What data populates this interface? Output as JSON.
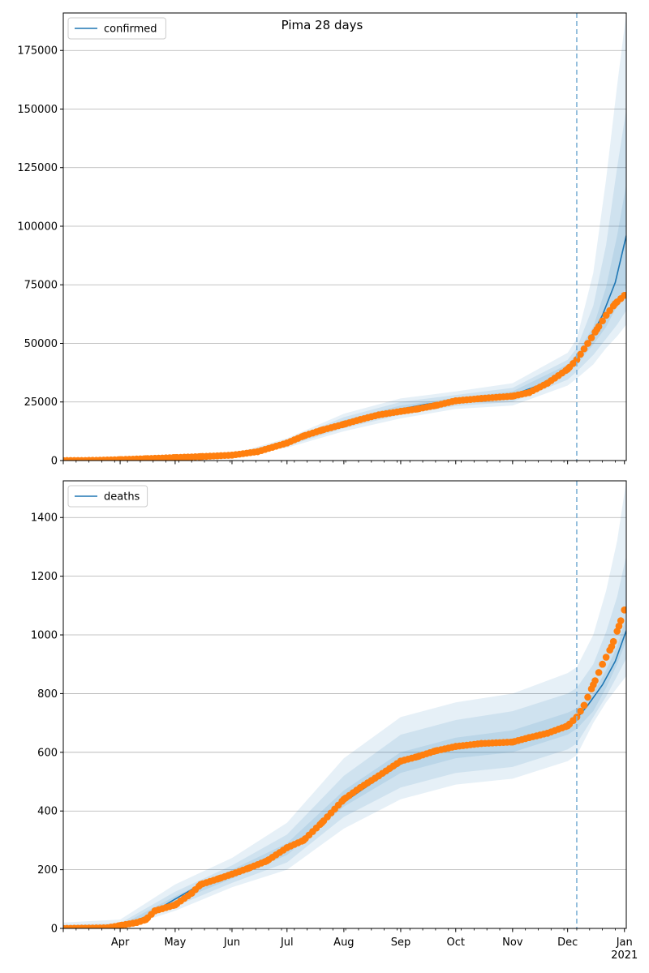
{
  "figure": {
    "suptitle": "Pima 28 days"
  },
  "colors": {
    "model_line": "#1f77b4",
    "observed_points": "#ff7f0e",
    "band": "#1f77b4",
    "forecast_line": "#7fb1d6",
    "grid": "#b0b0b0"
  },
  "chart_data": [
    {
      "type": "line",
      "xlabel": "",
      "ylabel": "",
      "x_range": [
        "2020-03-01",
        "2021-01-02"
      ],
      "ylim": [
        0,
        191000
      ],
      "yticks": [
        0,
        25000,
        50000,
        75000,
        100000,
        125000,
        150000,
        175000
      ],
      "x_tick_labels": [],
      "grid": "horizontal",
      "legend": {
        "placement": "top-left",
        "entries": [
          "confirmed"
        ]
      },
      "forecast_start": "2020-12-06",
      "series": [
        {
          "name": "confirmed",
          "kind": "model-median",
          "x": [
            "2020-03-01",
            "2020-04-01",
            "2020-05-01",
            "2020-06-01",
            "2020-06-15",
            "2020-07-01",
            "2020-07-15",
            "2020-08-01",
            "2020-08-15",
            "2020-09-01",
            "2020-09-15",
            "2020-10-01",
            "2020-10-15",
            "2020-11-01",
            "2020-11-15",
            "2020-12-01",
            "2020-12-06",
            "2020-12-12",
            "2020-12-20",
            "2020-12-27",
            "2021-01-02"
          ],
          "y": [
            0,
            200,
            900,
            2200,
            3800,
            7500,
            12000,
            16000,
            19500,
            22000,
            24000,
            25500,
            26500,
            28000,
            32000,
            39000,
            43000,
            50000,
            62000,
            76000,
            96000
          ]
        },
        {
          "name": "observed",
          "kind": "observed",
          "x": [
            "2020-03-01",
            "2020-03-15",
            "2020-04-01",
            "2020-04-15",
            "2020-05-01",
            "2020-05-15",
            "2020-06-01",
            "2020-06-15",
            "2020-07-01",
            "2020-07-10",
            "2020-07-20",
            "2020-08-01",
            "2020-08-10",
            "2020-08-20",
            "2020-09-01",
            "2020-09-10",
            "2020-09-20",
            "2020-10-01",
            "2020-10-15",
            "2020-11-01",
            "2020-11-10",
            "2020-11-20",
            "2020-12-01",
            "2020-12-06",
            "2020-12-12",
            "2020-12-17",
            "2020-12-22",
            "2020-12-27",
            "2021-01-01"
          ],
          "y": [
            0,
            50,
            400,
            800,
            1300,
            1700,
            2300,
            3800,
            7500,
            10500,
            13000,
            15500,
            17500,
            19500,
            21000,
            22000,
            23500,
            25500,
            26500,
            27500,
            29000,
            33000,
            39000,
            43000,
            50000,
            56000,
            62000,
            67000,
            70500
          ]
        }
      ],
      "bands": [
        {
          "label": "outer",
          "x": [
            "2020-03-01",
            "2020-05-01",
            "2020-06-01",
            "2020-07-01",
            "2020-08-01",
            "2020-09-01",
            "2020-10-01",
            "2020-11-01",
            "2020-12-01",
            "2020-12-06",
            "2020-12-15",
            "2020-12-22",
            "2020-12-28",
            "2021-01-02"
          ],
          "lo": [
            0,
            700,
            1800,
            5500,
            12500,
            18000,
            22000,
            23500,
            32000,
            35000,
            41000,
            48000,
            53000,
            58000
          ],
          "hi": [
            200,
            1200,
            2800,
            9500,
            20000,
            26500,
            29500,
            33000,
            46000,
            52000,
            80000,
            120000,
            160000,
            191000
          ]
        },
        {
          "label": "middle",
          "x": [
            "2020-03-01",
            "2020-05-01",
            "2020-06-01",
            "2020-07-01",
            "2020-08-01",
            "2020-09-01",
            "2020-10-01",
            "2020-11-01",
            "2020-12-01",
            "2020-12-06",
            "2020-12-15",
            "2020-12-22",
            "2020-12-28",
            "2021-01-02"
          ],
          "lo": [
            0,
            780,
            1950,
            6200,
            13800,
            19500,
            23300,
            25000,
            34500,
            38000,
            45000,
            52000,
            58000,
            64000
          ],
          "hi": [
            150,
            1050,
            2550,
            8700,
            18500,
            25000,
            28000,
            31000,
            43000,
            48000,
            66000,
            92000,
            125000,
            150000
          ]
        },
        {
          "label": "inner",
          "x": [
            "2020-03-01",
            "2020-05-01",
            "2020-06-01",
            "2020-07-01",
            "2020-08-01",
            "2020-09-01",
            "2020-10-01",
            "2020-11-01",
            "2020-12-01",
            "2020-12-06",
            "2020-12-15",
            "2020-12-22",
            "2020-12-28",
            "2021-01-02"
          ],
          "lo": [
            0,
            850,
            2100,
            6900,
            15000,
            21000,
            24600,
            26500,
            37000,
            41000,
            49500,
            57000,
            66000,
            74000
          ],
          "hi": [
            100,
            950,
            2350,
            8100,
            17200,
            23500,
            26800,
            29500,
            41000,
            45500,
            57000,
            74000,
            96000,
            118000
          ]
        }
      ]
    },
    {
      "type": "line",
      "xlabel": "",
      "ylabel": "",
      "x_range": [
        "2020-03-01",
        "2021-01-02"
      ],
      "ylim": [
        0,
        1525
      ],
      "yticks": [
        0,
        200,
        400,
        600,
        800,
        1000,
        1200,
        1400
      ],
      "x_tick_labels": [
        "Apr",
        "May",
        "Jun",
        "Jul",
        "Aug",
        "Sep",
        "Oct",
        "Nov",
        "Dec",
        "Jan\n2021"
      ],
      "x_tick_dates": [
        "2020-04-01",
        "2020-05-01",
        "2020-06-01",
        "2020-07-01",
        "2020-08-01",
        "2020-09-01",
        "2020-10-01",
        "2020-11-01",
        "2020-12-01",
        "2021-01-01"
      ],
      "grid": "horizontal",
      "legend": {
        "placement": "top-left",
        "entries": [
          "deaths"
        ]
      },
      "forecast_start": "2020-12-06",
      "series": [
        {
          "name": "deaths",
          "kind": "model-median",
          "x": [
            "2020-03-01",
            "2020-03-20",
            "2020-04-01",
            "2020-04-15",
            "2020-05-01",
            "2020-05-15",
            "2020-06-01",
            "2020-06-15",
            "2020-07-01",
            "2020-07-15",
            "2020-08-01",
            "2020-08-15",
            "2020-09-01",
            "2020-09-15",
            "2020-10-01",
            "2020-10-15",
            "2020-11-01",
            "2020-11-15",
            "2020-12-01",
            "2020-12-06",
            "2020-12-12",
            "2020-12-20",
            "2020-12-27",
            "2021-01-02"
          ],
          "y": [
            0,
            0,
            5,
            40,
            100,
            150,
            185,
            225,
            270,
            330,
            430,
            490,
            560,
            595,
            615,
            625,
            635,
            650,
            685,
            715,
            760,
            830,
            910,
            1015
          ]
        },
        {
          "name": "observed",
          "kind": "observed",
          "x": [
            "2020-03-01",
            "2020-03-25",
            "2020-04-01",
            "2020-04-10",
            "2020-04-15",
            "2020-04-20",
            "2020-05-01",
            "2020-05-10",
            "2020-05-15",
            "2020-05-25",
            "2020-06-01",
            "2020-06-10",
            "2020-06-20",
            "2020-07-01",
            "2020-07-10",
            "2020-07-20",
            "2020-08-01",
            "2020-08-10",
            "2020-08-20",
            "2020-09-01",
            "2020-09-10",
            "2020-09-20",
            "2020-10-01",
            "2020-10-15",
            "2020-11-01",
            "2020-11-10",
            "2020-11-20",
            "2020-12-01",
            "2020-12-06",
            "2020-12-10",
            "2020-12-15",
            "2020-12-20",
            "2020-12-25",
            "2020-12-29",
            "2021-01-01"
          ],
          "y": [
            0,
            2,
            10,
            20,
            30,
            60,
            80,
            120,
            150,
            170,
            185,
            205,
            230,
            275,
            300,
            360,
            440,
            480,
            520,
            570,
            585,
            605,
            620,
            630,
            635,
            650,
            665,
            690,
            720,
            760,
            830,
            900,
            960,
            1030,
            1085
          ]
        }
      ],
      "bands": [
        {
          "label": "outer",
          "x": [
            "2020-03-01",
            "2020-04-01",
            "2020-05-01",
            "2020-06-01",
            "2020-07-01",
            "2020-08-01",
            "2020-09-01",
            "2020-10-01",
            "2020-11-01",
            "2020-12-01",
            "2020-12-06",
            "2020-12-15",
            "2020-12-22",
            "2020-12-28",
            "2021-01-02"
          ],
          "lo": [
            0,
            0,
            60,
            140,
            200,
            340,
            440,
            490,
            510,
            570,
            590,
            700,
            770,
            820,
            860
          ],
          "hi": [
            20,
            30,
            150,
            240,
            360,
            580,
            720,
            770,
            800,
            870,
            890,
            1000,
            1150,
            1320,
            1525
          ]
        },
        {
          "label": "middle",
          "x": [
            "2020-03-01",
            "2020-04-01",
            "2020-05-01",
            "2020-06-01",
            "2020-07-01",
            "2020-08-01",
            "2020-09-01",
            "2020-10-01",
            "2020-11-01",
            "2020-12-01",
            "2020-12-06",
            "2020-12-15",
            "2020-12-22",
            "2020-12-28",
            "2021-01-02"
          ],
          "lo": [
            0,
            0,
            75,
            155,
            225,
            380,
            480,
            530,
            550,
            610,
            630,
            720,
            790,
            860,
            920
          ],
          "hi": [
            12,
            18,
            125,
            215,
            320,
            520,
            660,
            710,
            740,
            800,
            820,
            900,
            1010,
            1130,
            1270
          ]
        },
        {
          "label": "inner",
          "x": [
            "2020-03-01",
            "2020-04-01",
            "2020-05-01",
            "2020-06-01",
            "2020-07-01",
            "2020-08-01",
            "2020-09-01",
            "2020-10-01",
            "2020-11-01",
            "2020-12-01",
            "2020-12-06",
            "2020-12-15",
            "2020-12-22",
            "2020-12-28",
            "2021-01-02"
          ],
          "lo": [
            0,
            0,
            90,
            170,
            250,
            415,
            530,
            580,
            600,
            660,
            680,
            740,
            820,
            900,
            980
          ],
          "hi": [
            6,
            10,
            110,
            200,
            290,
            470,
            600,
            650,
            675,
            735,
            750,
            800,
            880,
            960,
            1060
          ]
        }
      ]
    }
  ]
}
